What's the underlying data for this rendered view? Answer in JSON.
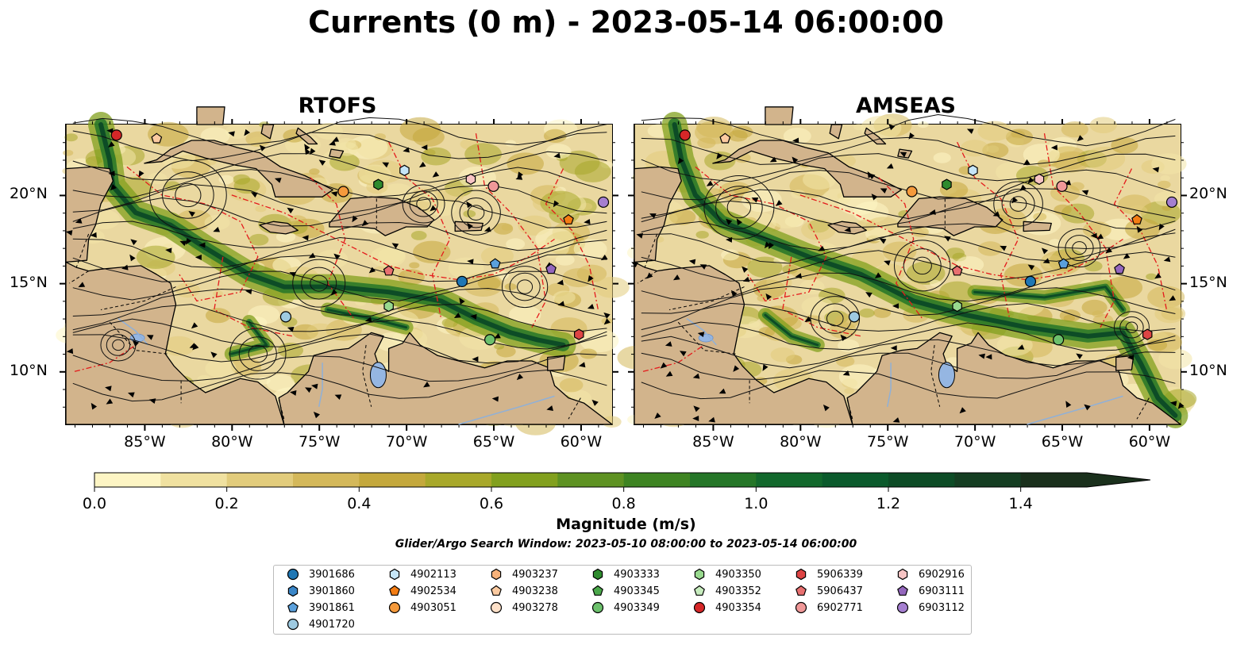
{
  "title": "Currents (0 m) - 2023-05-14 06:00:00",
  "panels": [
    {
      "name": "RTOFS"
    },
    {
      "name": "AMSEAS"
    }
  ],
  "lon_ticks": [
    "85°W",
    "80°W",
    "75°W",
    "70°W",
    "65°W",
    "60°W"
  ],
  "lat_ticks": [
    "20°N",
    "15°N",
    "10°N"
  ],
  "colorbar": {
    "label": "Magnitude (m/s)",
    "tick_labels": [
      "0.0",
      "0.2",
      "0.4",
      "0.6",
      "0.8",
      "1.0",
      "1.2",
      "1.4"
    ],
    "range": [
      0,
      1.5
    ],
    "colors": [
      "#fdf5c4",
      "#f0e1a0",
      "#e2cc7c",
      "#d4b85a",
      "#c4a83c",
      "#a8a82a",
      "#82a01e",
      "#5e9222",
      "#3e8422",
      "#257628",
      "#12682c",
      "#0b5a2c",
      "#0d4c26",
      "#153e22",
      "#1a301c"
    ]
  },
  "search_window": "Glider/Argo Search Window: 2023-05-10 08:00:00 to 2023-05-14 06:00:00",
  "legend": [
    {
      "id": "3901686",
      "marker": "circle",
      "color": "#1f77b4"
    },
    {
      "id": "3901860",
      "marker": "hexagon",
      "color": "#3a86c8"
    },
    {
      "id": "3901861",
      "marker": "pentagon",
      "color": "#5aa0dc"
    },
    {
      "id": "4901720",
      "marker": "circle",
      "color": "#9ecae1"
    },
    {
      "id": "4902113",
      "marker": "hexagon",
      "color": "#c6e5f7"
    },
    {
      "id": "4902534",
      "marker": "pentagon",
      "color": "#f47d14"
    },
    {
      "id": "4903051",
      "marker": "circle",
      "color": "#f59a3c"
    },
    {
      "id": "4903237",
      "marker": "hexagon",
      "color": "#f8b27a"
    },
    {
      "id": "4903238",
      "marker": "pentagon",
      "color": "#fbcaa0"
    },
    {
      "id": "4903278",
      "marker": "circle",
      "color": "#fde0c8"
    },
    {
      "id": "4903333",
      "marker": "hexagon",
      "color": "#2e8b2e"
    },
    {
      "id": "4903345",
      "marker": "pentagon",
      "color": "#4aa84a"
    },
    {
      "id": "4903349",
      "marker": "circle",
      "color": "#6cc06c"
    },
    {
      "id": "4903350",
      "marker": "hexagon",
      "color": "#98d98e"
    },
    {
      "id": "4903352",
      "marker": "pentagon",
      "color": "#c7ecbe"
    },
    {
      "id": "4903354",
      "marker": "circle",
      "color": "#d62728"
    },
    {
      "id": "5906339",
      "marker": "hexagon",
      "color": "#dd4444"
    },
    {
      "id": "5906437",
      "marker": "pentagon",
      "color": "#e87070"
    },
    {
      "id": "6902771",
      "marker": "circle",
      "color": "#f09898"
    },
    {
      "id": "6902916",
      "marker": "hexagon",
      "color": "#f7c4c4"
    },
    {
      "id": "6903111",
      "marker": "pentagon",
      "color": "#9467bd"
    },
    {
      "id": "6903112",
      "marker": "circle",
      "color": "#a57fd0"
    }
  ],
  "platforms": [
    {
      "id": "4903354",
      "lon": -86.6,
      "lat": 23.4
    },
    {
      "id": "4903238",
      "lon": -84.3,
      "lat": 23.2
    },
    {
      "id": "4902113",
      "lon": -70.1,
      "lat": 21.4
    },
    {
      "id": "4903051",
      "lon": -73.6,
      "lat": 20.2
    },
    {
      "id": "4903333",
      "lon": -71.6,
      "lat": 20.6
    },
    {
      "id": "6902916",
      "lon": -66.3,
      "lat": 20.9
    },
    {
      "id": "6902771",
      "lon": -65.0,
      "lat": 20.5
    },
    {
      "id": "4902534",
      "lon": -60.7,
      "lat": 18.6
    },
    {
      "id": "6903112",
      "lon": -58.7,
      "lat": 19.6
    },
    {
      "id": "3901861",
      "lon": -64.9,
      "lat": 16.1
    },
    {
      "id": "6903111",
      "lon": -61.7,
      "lat": 15.8
    },
    {
      "id": "5906437",
      "lon": -71.0,
      "lat": 15.7
    },
    {
      "id": "3901686",
      "lon": -66.8,
      "lat": 15.1
    },
    {
      "id": "4903350",
      "lon": -71.0,
      "lat": 13.7
    },
    {
      "id": "4901720",
      "lon": -76.9,
      "lat": 13.1
    },
    {
      "id": "5906339",
      "lon": -60.1,
      "lat": 12.1
    },
    {
      "id": "4903349",
      "lon": -65.2,
      "lat": 11.8
    }
  ],
  "map_extent": {
    "lon": [
      -89.5,
      -58.2
    ],
    "lat": [
      7.0,
      24.0
    ]
  }
}
